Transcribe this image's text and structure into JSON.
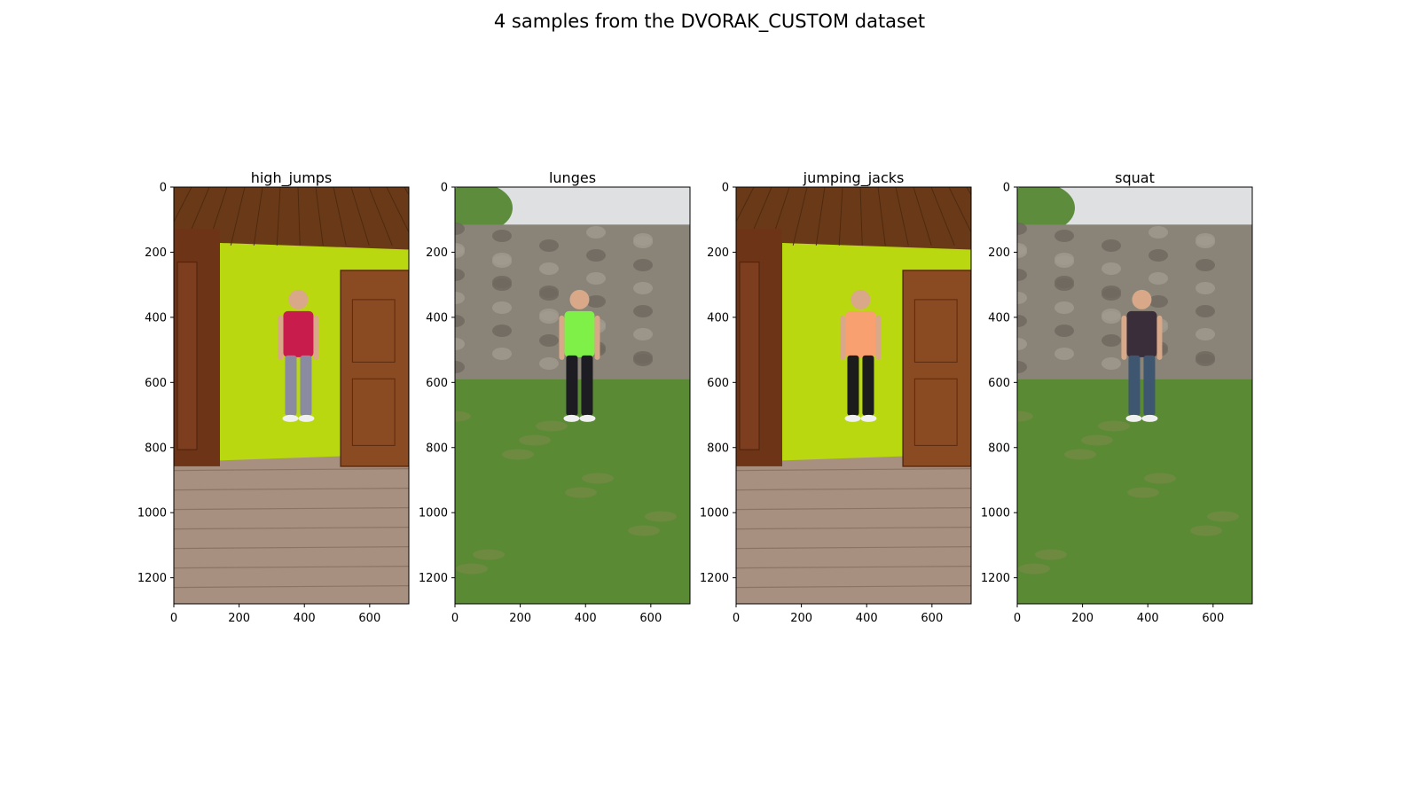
{
  "figure": {
    "title": "4 samples from the DVORAK_CUSTOM dataset"
  },
  "chart_data": [
    {
      "type": "image",
      "title": "high_jumps",
      "scene": "indoor",
      "xlim": [
        0,
        720
      ],
      "ylim": [
        1280,
        0
      ],
      "xticks": [
        "0",
        "200",
        "400",
        "600"
      ],
      "yticks": [
        "0",
        "200",
        "400",
        "600",
        "800",
        "1000",
        "1200"
      ],
      "colors": {
        "shirt": "#c81d4c",
        "pants": "#8a8aa0",
        "wall": "#b9d810"
      }
    },
    {
      "type": "image",
      "title": "lunges",
      "scene": "garden",
      "xlim": [
        0,
        720
      ],
      "ylim": [
        1280,
        0
      ],
      "xticks": [
        "0",
        "200",
        "400",
        "600"
      ],
      "yticks": [
        "0",
        "200",
        "400",
        "600",
        "800",
        "1000",
        "1200"
      ],
      "colors": {
        "shirt": "#7ef048",
        "pants": "#1c1c22",
        "wall": "#8a8478"
      }
    },
    {
      "type": "image",
      "title": "jumping_jacks",
      "scene": "indoor",
      "xlim": [
        0,
        720
      ],
      "ylim": [
        1280,
        0
      ],
      "xticks": [
        "0",
        "200",
        "400",
        "600"
      ],
      "yticks": [
        "0",
        "200",
        "400",
        "600",
        "800",
        "1000",
        "1200"
      ],
      "colors": {
        "shirt": "#f9a070",
        "pants": "#1c1c1c",
        "wall": "#b9d810"
      }
    },
    {
      "type": "image",
      "title": "squat",
      "scene": "garden",
      "xlim": [
        0,
        720
      ],
      "ylim": [
        1280,
        0
      ],
      "xticks": [
        "0",
        "200",
        "400",
        "600"
      ],
      "yticks": [
        "0",
        "200",
        "400",
        "600",
        "800",
        "1000",
        "1200"
      ],
      "colors": {
        "shirt": "#3a2e3a",
        "pants": "#3e5670",
        "wall": "#8a8478"
      }
    }
  ]
}
